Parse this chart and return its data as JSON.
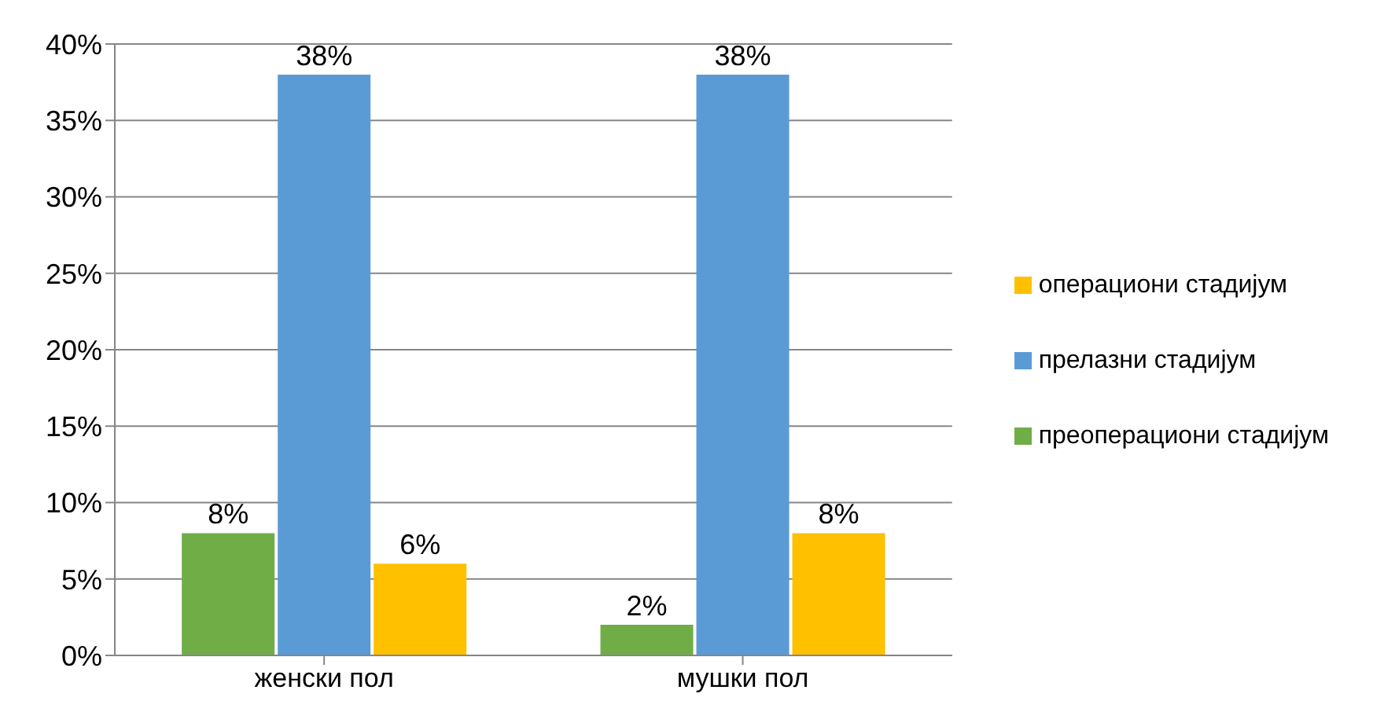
{
  "chart_data": {
    "type": "bar",
    "categories": [
      "женски пол",
      "мушки пол"
    ],
    "series": [
      {
        "name": "преоперациони стадијум",
        "color": "#70ad47",
        "values": [
          8,
          2
        ],
        "value_labels": [
          "8%",
          "2%"
        ]
      },
      {
        "name": "прелазни стадијум",
        "color": "#5b9bd5",
        "values": [
          38,
          38
        ],
        "value_labels": [
          "38%",
          "38%"
        ]
      },
      {
        "name": "операциони стадијум",
        "color": "#ffc000",
        "values": [
          6,
          8
        ],
        "value_labels": [
          "6%",
          "8%"
        ]
      }
    ],
    "ylim": [
      0,
      40
    ],
    "yticks": [
      {
        "value": 0,
        "label": "0%"
      },
      {
        "value": 5,
        "label": "5%"
      },
      {
        "value": 10,
        "label": "10%"
      },
      {
        "value": 15,
        "label": "15%"
      },
      {
        "value": 20,
        "label": "20%"
      },
      {
        "value": 25,
        "label": "25%"
      },
      {
        "value": 30,
        "label": "30%"
      },
      {
        "value": 35,
        "label": "35%"
      },
      {
        "value": 40,
        "label": "40%"
      }
    ],
    "grid": "y",
    "legend": "right"
  }
}
